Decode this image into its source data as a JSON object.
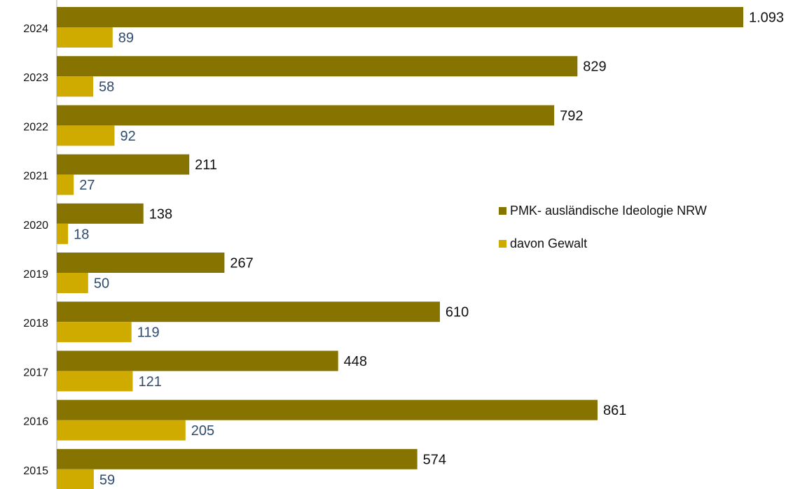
{
  "chart_data": {
    "type": "bar",
    "orientation": "horizontal",
    "categories": [
      "2024",
      "2023",
      "2022",
      "2021",
      "2020",
      "2019",
      "2018",
      "2017",
      "2016",
      "2015"
    ],
    "series": [
      {
        "name": "PMK- ausländische Ideologie NRW",
        "values": [
          1093,
          829,
          792,
          211,
          138,
          267,
          610,
          448,
          861,
          574
        ],
        "labels": [
          "1.093",
          "829",
          "792",
          "211",
          "138",
          "267",
          "610",
          "448",
          "861",
          "574"
        ],
        "color": "#877300"
      },
      {
        "name": "davon Gewalt",
        "values": [
          89,
          58,
          92,
          27,
          18,
          50,
          119,
          121,
          205,
          59
        ],
        "labels": [
          "89",
          "58",
          "92",
          "27",
          "18",
          "50",
          "119",
          "121",
          "205",
          "59"
        ],
        "color": "#cfab00"
      }
    ],
    "xlim": [
      0,
      1093
    ],
    "grid": false,
    "legend_position": "right"
  },
  "legend": {
    "items": [
      {
        "label": "PMK- ausländische Ideologie NRW",
        "color": "#877300"
      },
      {
        "label": "davon Gewalt",
        "color": "#cfab00"
      }
    ]
  }
}
